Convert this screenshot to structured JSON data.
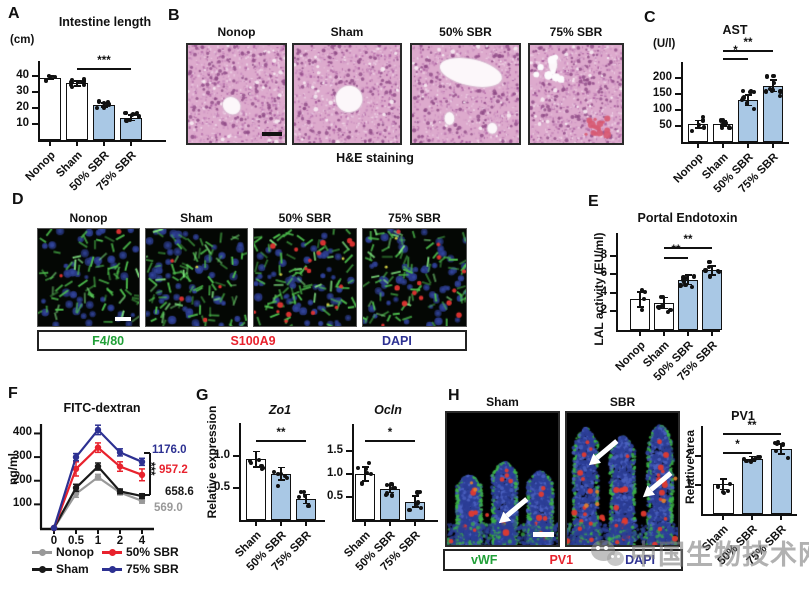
{
  "panels": {
    "a": {
      "letter": "A"
    },
    "b": {
      "letter": "B",
      "labels": [
        "Nonop",
        "Sham",
        "50% SBR",
        "75% SBR"
      ],
      "caption": "H&E staining"
    },
    "c": {
      "letter": "C"
    },
    "d": {
      "letter": "D",
      "labels": [
        "Nonop",
        "Sham",
        "50% SBR",
        "75% SBR"
      ],
      "markers": [
        {
          "text": "F4/80",
          "color": "#21a038"
        },
        {
          "text": "S100A9",
          "color": "#e8222d"
        },
        {
          "text": "DAPI",
          "color": "#2d3192"
        }
      ]
    },
    "e": {
      "letter": "E"
    },
    "f": {
      "letter": "F"
    },
    "g": {
      "letter": "G"
    },
    "h": {
      "letter": "H",
      "labels": [
        "Sham",
        "SBR"
      ],
      "markers": [
        {
          "text": "vWF",
          "color": "#21a038"
        },
        {
          "text": "PV1",
          "color": "#e8222d"
        },
        {
          "text": "DAPI",
          "color": "#2d3192"
        }
      ]
    }
  },
  "watermark": {
    "text": "中国生物技术网"
  },
  "colors": {
    "bar_blue": "#a9c8e5",
    "bar_white": "#ffffff",
    "axis": "#111111"
  },
  "chart_data": [
    {
      "type": "bar",
      "title": "Intestine length",
      "ylabel": "(cm)",
      "categories": [
        "Nonop",
        "Sham",
        "50% SBR",
        "75% SBR"
      ],
      "values": [
        39,
        35.5,
        22,
        14
      ],
      "errors": [
        1.2,
        1.5,
        1.2,
        1.8
      ],
      "bar_colors": [
        "#ffffff",
        "#ffffff",
        "#a9c8e5",
        "#a9c8e5"
      ],
      "yticks": [
        10,
        20,
        30,
        40
      ],
      "ytick_labels": [
        "10",
        "20",
        "30",
        "40"
      ],
      "ylim": [
        0,
        47
      ],
      "sig": [
        {
          "from": 1,
          "to": 3,
          "label": "***"
        }
      ],
      "dots_per_bar": [
        4,
        9,
        8,
        9
      ]
    },
    {
      "type": "bar",
      "title": "AST",
      "ylabel": "(U/l)",
      "categories": [
        "Nonop",
        "Sham",
        "50% SBR",
        "75% SBR"
      ],
      "values": [
        55,
        57,
        130,
        175
      ],
      "errors": [
        12,
        8,
        16,
        18
      ],
      "bar_colors": [
        "#ffffff",
        "#ffffff",
        "#a9c8e5",
        "#a9c8e5"
      ],
      "yticks": [
        50,
        100,
        150,
        200
      ],
      "ytick_labels": [
        "50",
        "100",
        "150",
        "200"
      ],
      "ylim": [
        0,
        237
      ],
      "sig": [
        {
          "from": 1,
          "to": 2,
          "label": "*"
        },
        {
          "from": 1,
          "to": 3,
          "label": "**"
        }
      ],
      "dots_per_bar": [
        5,
        8,
        9,
        9
      ]
    },
    {
      "type": "bar",
      "title": "Portal Endotoxin",
      "ylabel": "LAL activity (EU/ml)",
      "categories": [
        "Nonop",
        "Sham",
        "50% SBR",
        "75% SBR"
      ],
      "values": [
        3.3,
        2.9,
        5.4,
        6.4
      ],
      "errors": [
        0.8,
        0.6,
        0.5,
        0.5
      ],
      "bar_colors": [
        "#ffffff",
        "#ffffff",
        "#a9c8e5",
        "#a9c8e5"
      ],
      "yticks": [
        2,
        4,
        6,
        8
      ],
      "ytick_labels": [
        "2",
        "4",
        "6",
        "8"
      ],
      "ylim": [
        0,
        10
      ],
      "sig": [
        {
          "from": 1,
          "to": 2,
          "label": "**"
        },
        {
          "from": 1,
          "to": 3,
          "label": "**"
        }
      ],
      "dots_per_bar": [
        4,
        8,
        9,
        8
      ]
    },
    {
      "type": "line",
      "title": "FITC-dextran",
      "ylabel": "ng/ml",
      "x": [
        0,
        0.5,
        1,
        2,
        4
      ],
      "yticks": [
        100,
        200,
        300,
        400
      ],
      "ytick_labels": [
        "100",
        "200",
        "300",
        "400"
      ],
      "ylim": [
        0,
        440
      ],
      "series": [
        {
          "name": "Nonop",
          "color": "#999999",
          "values": [
            0,
            145,
            215,
            150,
            115
          ],
          "errors": [
            0,
            15,
            12,
            10,
            10
          ],
          "auc": "569.0"
        },
        {
          "name": "Sham",
          "color": "#1a1a1a",
          "values": [
            0,
            170,
            260,
            155,
            135
          ],
          "errors": [
            0,
            15,
            15,
            10,
            10
          ],
          "auc": "658.6"
        },
        {
          "name": "50% SBR",
          "color": "#e8222d",
          "values": [
            0,
            250,
            340,
            260,
            225
          ],
          "errors": [
            0,
            30,
            20,
            20,
            25
          ],
          "auc": "957.2"
        },
        {
          "name": "75% SBR",
          "color": "#2d3192",
          "values": [
            0,
            300,
            415,
            320,
            280
          ],
          "errors": [
            0,
            15,
            20,
            15,
            15
          ],
          "auc": "1176.0"
        }
      ],
      "sig_label": "***",
      "legend_order": [
        [
          0,
          2
        ],
        [
          1,
          3
        ]
      ]
    },
    {
      "type": "bar",
      "title": "Zo1",
      "ylabel": "Relative expression",
      "categories": [
        "Sham",
        "50% SBR",
        "75% SBR"
      ],
      "values": [
        0.95,
        0.72,
        0.33
      ],
      "errors": [
        0.12,
        0.1,
        0.07
      ],
      "bar_colors": [
        "#ffffff",
        "#a9c8e5",
        "#a9c8e5"
      ],
      "yticks": [
        0.5,
        1.0
      ],
      "ytick_labels": [
        "0.5",
        "1.0"
      ],
      "ylim": [
        0,
        1.45
      ],
      "sig": [
        {
          "from": 0,
          "to": 2,
          "label": "**"
        }
      ],
      "dots_per_bar": [
        7,
        6,
        5
      ]
    },
    {
      "type": "bar",
      "title": "Ocln",
      "ylabel": "",
      "categories": [
        "Sham",
        "50% SBR",
        "75% SBR"
      ],
      "values": [
        1.0,
        0.68,
        0.4
      ],
      "errors": [
        0.15,
        0.08,
        0.12
      ],
      "bar_colors": [
        "#ffffff",
        "#a9c8e5",
        "#a9c8e5"
      ],
      "yticks": [
        0.5,
        1.0,
        1.5
      ],
      "ytick_labels": [
        "0.5",
        "1.0",
        "1.5"
      ],
      "ylim": [
        0,
        2.0
      ],
      "sig": [
        {
          "from": 0,
          "to": 2,
          "label": "*"
        }
      ],
      "dots_per_bar": [
        6,
        7,
        6
      ]
    },
    {
      "type": "bar",
      "title": "PV1",
      "ylabel": "Relative area",
      "categories": [
        "Sham",
        "50% SBR",
        "75% SBR"
      ],
      "values": [
        1.02,
        1.9,
        2.25
      ],
      "errors": [
        0.18,
        0.08,
        0.17
      ],
      "bar_colors": [
        "#ffffff",
        "#a9c8e5",
        "#a9c8e5"
      ],
      "yticks": [
        1,
        2
      ],
      "ytick_labels": [
        "1",
        "2"
      ],
      "ylim": [
        0,
        2.9
      ],
      "sig": [
        {
          "from": 0,
          "to": 1,
          "label": "*"
        },
        {
          "from": 0,
          "to": 2,
          "label": "**"
        }
      ],
      "dots_per_bar": [
        5,
        7,
        6
      ]
    }
  ]
}
